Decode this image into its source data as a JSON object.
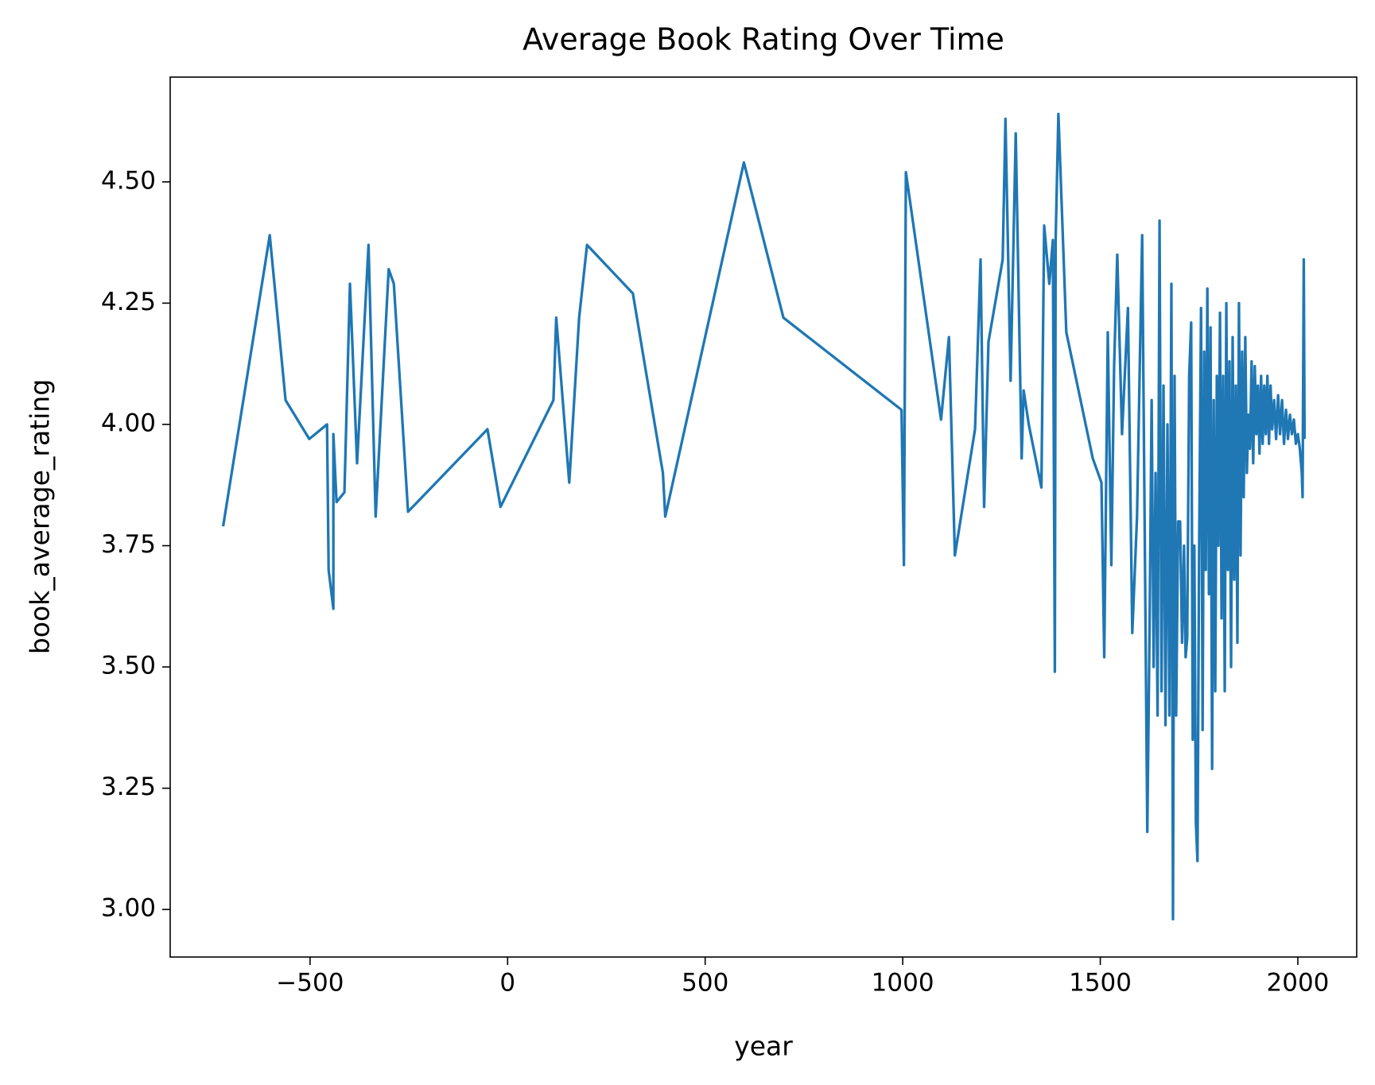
{
  "chart_data": {
    "type": "line",
    "title": "Average Book Rating Over Time",
    "x_label": "year",
    "y_label": "book_average_rating",
    "xlim": [
      -854,
      2149
    ],
    "ylim": [
      2.902,
      4.716
    ],
    "xticks": [
      {
        "value": -500,
        "label": "−500"
      },
      0,
      500,
      1000,
      1500,
      2000
    ],
    "yticks": [
      {
        "value": 3.0,
        "label": "3.00"
      },
      {
        "value": 3.25,
        "label": "3.25"
      },
      {
        "value": 3.5,
        "label": "3.50"
      },
      {
        "value": 3.75,
        "label": "3.75"
      },
      {
        "value": 4.0,
        "label": "4.00"
      },
      {
        "value": 4.25,
        "label": "4.25"
      },
      {
        "value": 4.5,
        "label": "4.50"
      }
    ],
    "grid": false,
    "series": [
      {
        "color": "#1f77b4",
        "x": [
          -720,
          -602,
          -562,
          -502,
          -457,
          -453,
          -441,
          -441,
          -433,
          -413,
          -399,
          -381,
          -352,
          -334,
          -301,
          -288,
          -252,
          -51,
          -18,
          116,
          123,
          156,
          181,
          201,
          317,
          393,
          399,
          598,
          698,
          997,
          1003,
          1008,
          1097,
          1117,
          1132,
          1183,
          1197,
          1206,
          1217,
          1253,
          1260,
          1273,
          1286,
          1301,
          1306,
          1319,
          1351,
          1358,
          1371,
          1380,
          1385,
          1387,
          1394,
          1414,
          1481,
          1503,
          1510,
          1519,
          1528,
          1535,
          1543,
          1555,
          1570,
          1581,
          1593,
          1606,
          1619,
          1625,
          1630,
          1635,
          1640,
          1645,
          1650,
          1655,
          1660,
          1665,
          1670,
          1675,
          1680,
          1684,
          1688,
          1692,
          1697,
          1702,
          1707,
          1712,
          1716,
          1720,
          1725,
          1730,
          1734,
          1738,
          1742,
          1746,
          1750,
          1755,
          1759,
          1763,
          1767,
          1771,
          1775,
          1779,
          1783,
          1787,
          1791,
          1795,
          1799,
          1803,
          1807,
          1811,
          1815,
          1819,
          1823,
          1827,
          1831,
          1835,
          1839,
          1843,
          1847,
          1851,
          1855,
          1859,
          1863,
          1867,
          1871,
          1875,
          1879,
          1883,
          1887,
          1891,
          1895,
          1899,
          1903,
          1907,
          1911,
          1915,
          1919,
          1923,
          1927,
          1931,
          1935,
          1940,
          1945,
          1950,
          1955,
          1960,
          1965,
          1970,
          1975,
          1980,
          1985,
          1990,
          1995,
          2000,
          2005,
          2010,
          2012,
          2015,
          2017
        ],
        "values": [
          3.79,
          4.39,
          4.05,
          3.97,
          4.0,
          3.7,
          3.62,
          3.98,
          3.84,
          3.86,
          4.29,
          3.92,
          4.37,
          3.81,
          4.32,
          4.29,
          3.82,
          3.99,
          3.83,
          4.05,
          4.22,
          3.88,
          4.22,
          4.37,
          4.27,
          3.9,
          3.81,
          4.54,
          4.22,
          4.03,
          3.71,
          4.52,
          4.01,
          4.18,
          3.73,
          3.99,
          4.34,
          3.83,
          4.17,
          4.34,
          4.63,
          4.09,
          4.6,
          3.93,
          4.07,
          4.0,
          3.87,
          4.41,
          4.29,
          4.38,
          3.49,
          4.38,
          4.64,
          4.19,
          3.93,
          3.88,
          3.52,
          4.19,
          3.71,
          4.12,
          4.35,
          3.98,
          4.24,
          3.57,
          3.81,
          4.39,
          3.16,
          3.6,
          4.05,
          3.5,
          3.9,
          3.4,
          4.42,
          3.45,
          4.08,
          3.38,
          4.0,
          3.4,
          4.29,
          2.98,
          4.1,
          3.4,
          3.8,
          3.8,
          3.55,
          3.75,
          3.52,
          3.56,
          4.1,
          4.21,
          3.35,
          3.75,
          3.18,
          3.1,
          3.72,
          4.24,
          3.37,
          4.15,
          3.7,
          4.28,
          3.65,
          4.2,
          3.29,
          4.05,
          3.45,
          4.1,
          3.75,
          4.23,
          3.6,
          4.1,
          3.45,
          4.25,
          3.7,
          4.13,
          3.5,
          4.18,
          3.68,
          4.08,
          3.55,
          4.25,
          3.73,
          4.15,
          3.85,
          4.18,
          3.9,
          4.02,
          3.95,
          4.13,
          3.92,
          4.12,
          3.98,
          4.08,
          3.94,
          4.1,
          3.96,
          4.08,
          3.98,
          4.1,
          3.96,
          4.08,
          3.99,
          4.05,
          3.97,
          4.06,
          3.98,
          4.05,
          3.96,
          4.03,
          3.97,
          4.02,
          3.98,
          4.01,
          3.96,
          3.98,
          3.95,
          3.9,
          3.85,
          4.34,
          3.97
        ]
      }
    ]
  }
}
